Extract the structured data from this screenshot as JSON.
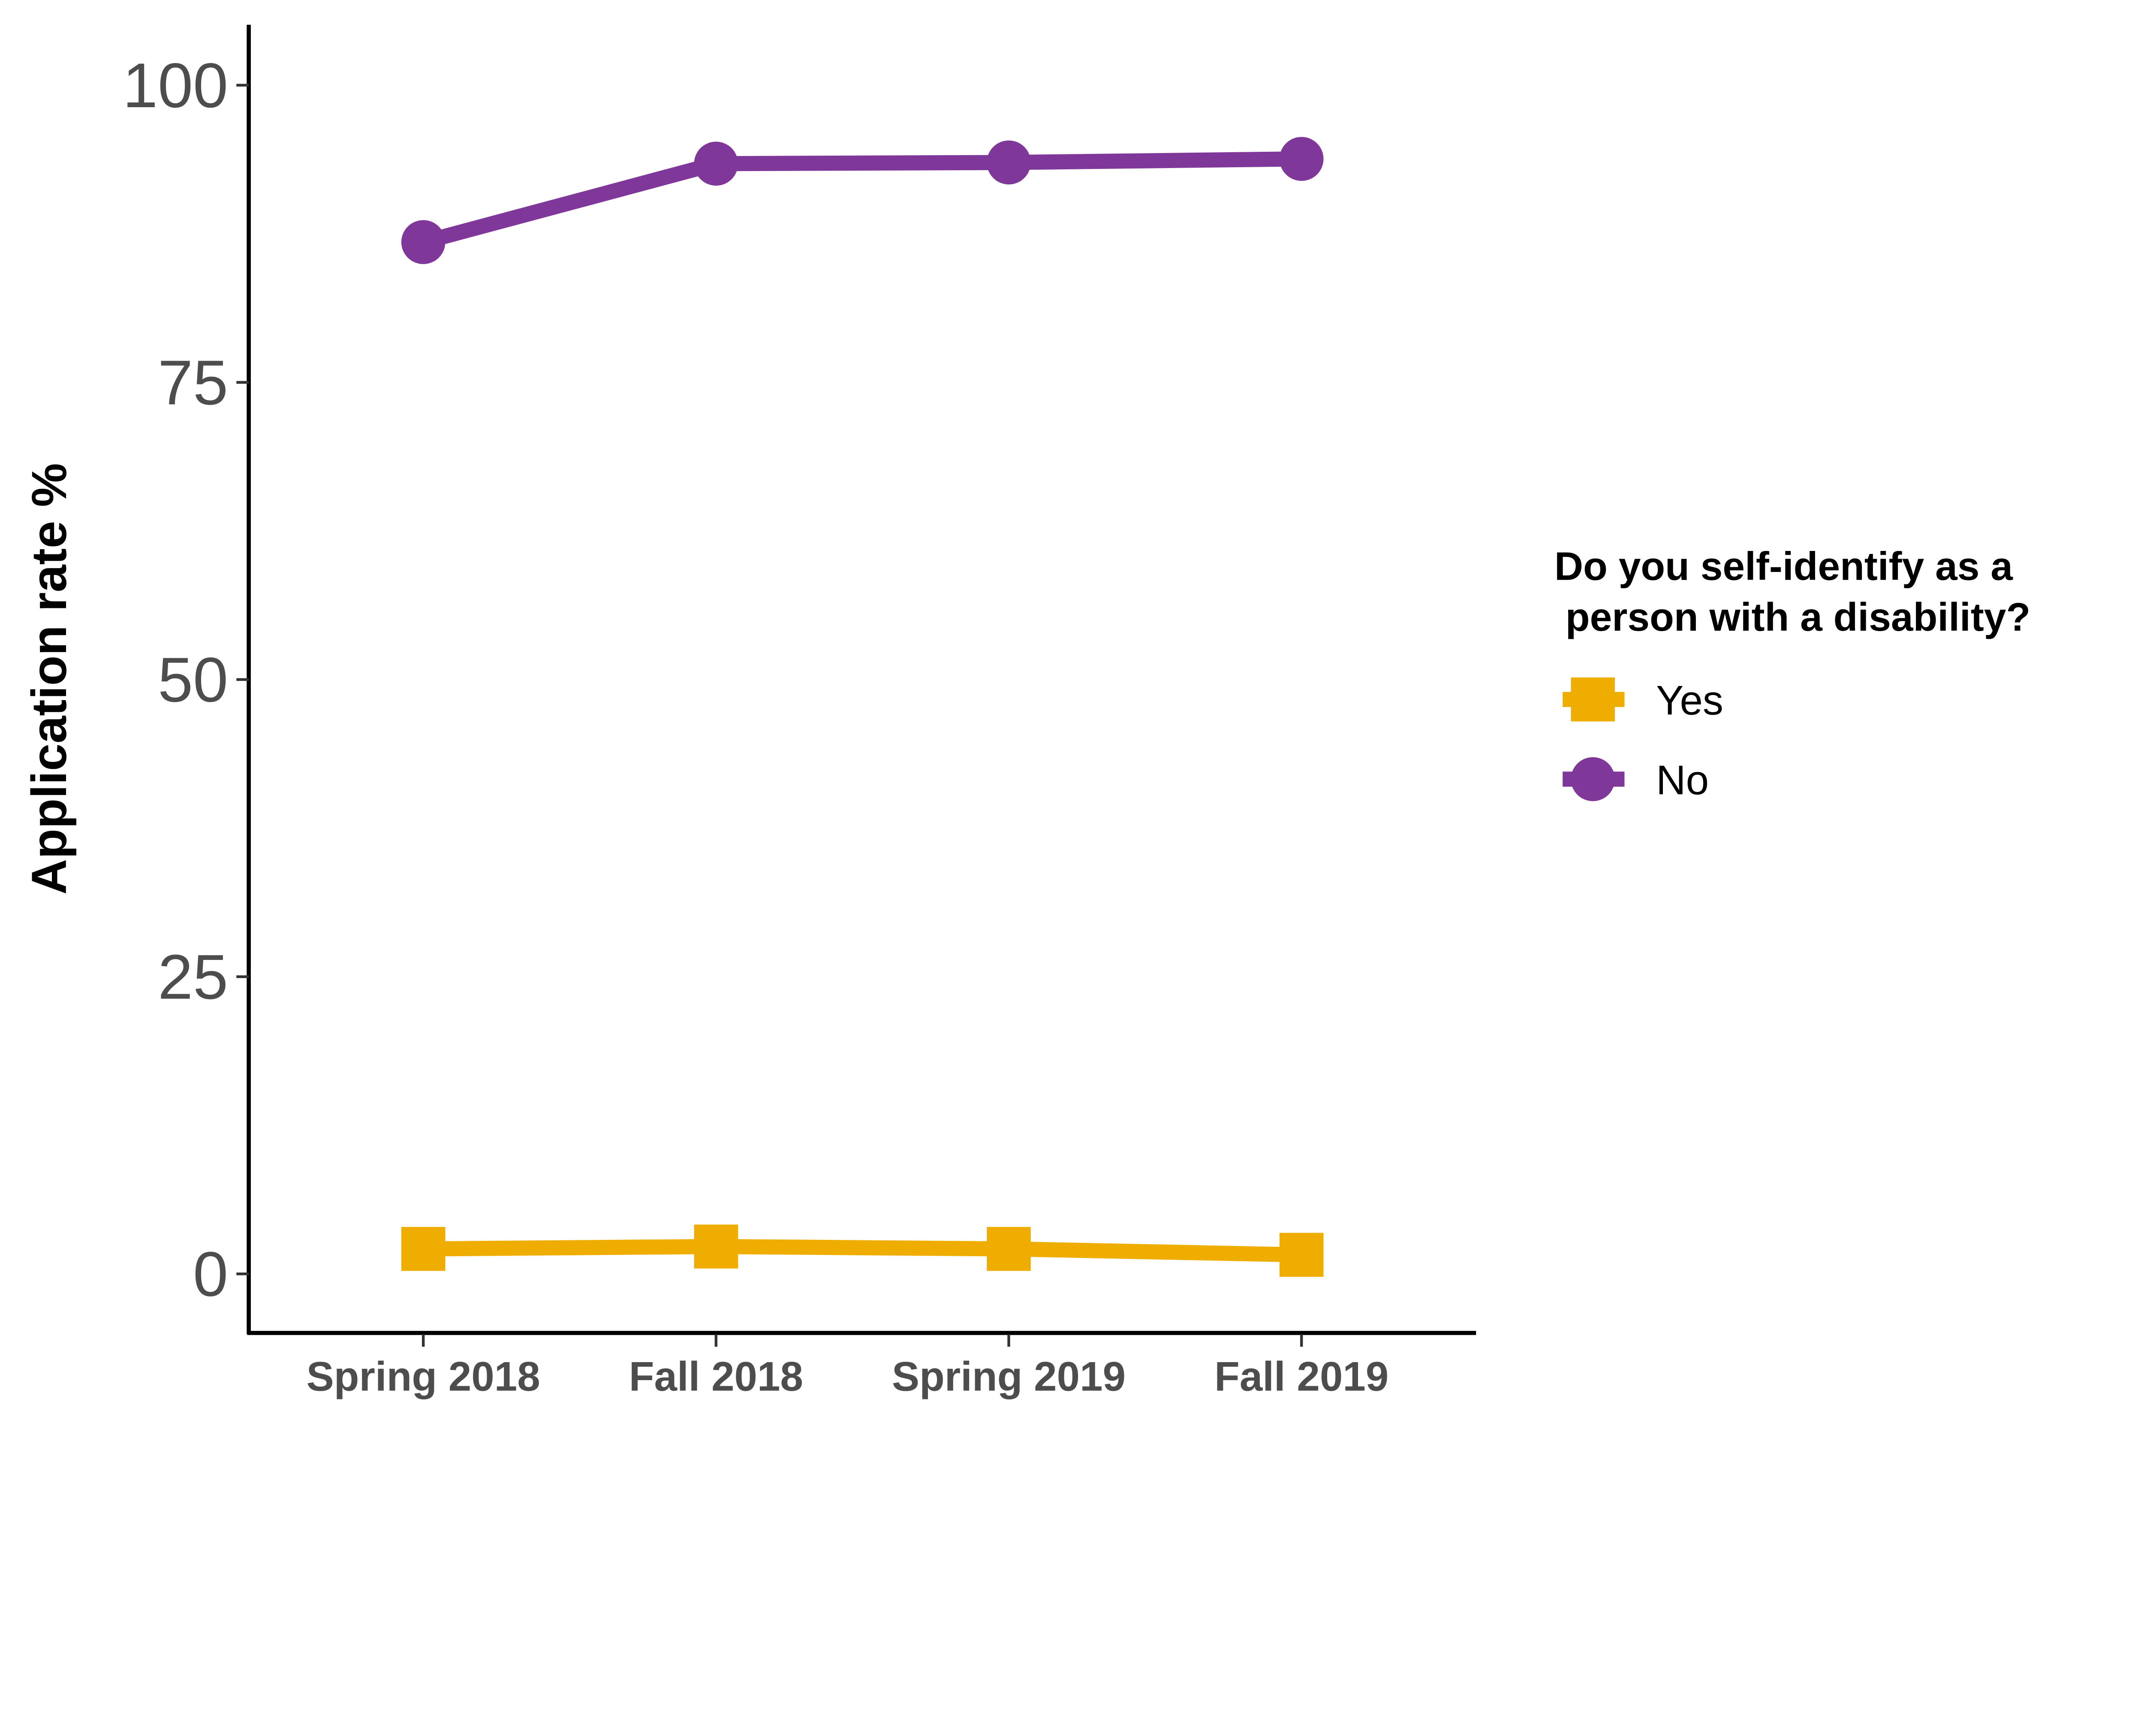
{
  "chart_data": {
    "type": "line",
    "title": "",
    "xlabel": "",
    "ylabel": "Application rate %",
    "categories": [
      "Spring 2018",
      "Fall 2018",
      "Spring 2019",
      "Fall 2019"
    ],
    "ylim": [
      -5,
      105
    ],
    "yticks": [
      0,
      25,
      50,
      75,
      100
    ],
    "ytick_labels": [
      "0",
      "25",
      "50",
      "75",
      "100"
    ],
    "grid": false,
    "legend": {
      "title_line1": "Do you self-identify as a",
      "title_line2": " person with a disability?",
      "placement": "right"
    },
    "series": [
      {
        "name": "Yes",
        "color": "#EEAD00",
        "marker": "square",
        "values": [
          2.1,
          2.3,
          2.1,
          1.6
        ]
      },
      {
        "name": "No",
        "color": "#7F3799",
        "marker": "circle",
        "values": [
          86.8,
          93.4,
          93.5,
          93.8
        ]
      }
    ]
  }
}
